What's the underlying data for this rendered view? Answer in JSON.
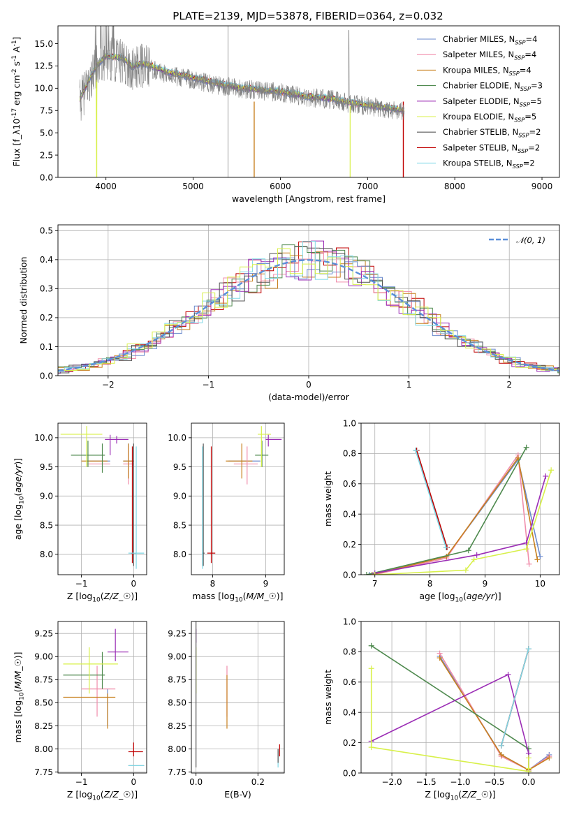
{
  "chart_data": [
    {
      "id": "spectrum",
      "type": "line",
      "title": "PLATE=2139, MJD=53878, FIBERID=0364, z=0.032",
      "xlabel": "wavelength [Angstrom, rest frame]",
      "ylabel": "Flux [f$_\\lambda$10$^{-17}$ erg cm$^{-2}$ s$^{-1}$ A$^{-1}$]",
      "xlim": [
        3450,
        9200
      ],
      "ylim": [
        0,
        17
      ],
      "xticks": [
        4000,
        5000,
        6000,
        7000,
        8000,
        9000
      ],
      "yticks": [
        0.0,
        2.5,
        5.0,
        7.5,
        10.0,
        12.5,
        15.0
      ],
      "grid": false,
      "legend_position": "top-right",
      "legend_entries": [
        {
          "label": "Chabrier MILES, N$_{SSP}$=4",
          "color": "#6a89cc"
        },
        {
          "label": "Salpeter MILES, N$_{SSP}$=4",
          "color": "#f08dab"
        },
        {
          "label": "Kroupa MILES, N$_{SSP}$=4",
          "color": "#c8801e"
        },
        {
          "label": "Chabrier ELODIE, N$_{SSP}$=3",
          "color": "#4f8a4f"
        },
        {
          "label": "Salpeter ELODIE, N$_{SSP}$=5",
          "color": "#9b2db5"
        },
        {
          "label": "Kroupa ELODIE, N$_{SSP}$=5",
          "color": "#d8f04a"
        },
        {
          "label": "Chabrier STELIB, N$_{SSP}$=2",
          "color": "#555555"
        },
        {
          "label": "Salpeter STELIB, N$_{SSP}$=2",
          "color": "#c00000"
        },
        {
          "label": "Kroupa STELIB, N$_{SSP}$=2",
          "color": "#7fd8e6"
        }
      ],
      "data_curve": {
        "name": "data",
        "color": "#808080",
        "x": [
          3700,
          3800,
          3900,
          4000,
          4100,
          4200,
          4300,
          4400,
          4500,
          4700,
          5000,
          5200,
          5500,
          5800,
          6000,
          6300,
          6600,
          6800,
          7000,
          7300,
          7420
        ],
        "y": [
          8.5,
          10.5,
          12.5,
          13.5,
          13.2,
          13.0,
          12.0,
          12.5,
          12.3,
          11.5,
          11.0,
          10.5,
          10.0,
          9.7,
          9.5,
          9.0,
          8.7,
          8.3,
          8.0,
          7.6,
          7.5
        ]
      },
      "model_curve": {
        "x": [
          3700,
          3800,
          3900,
          4000,
          4100,
          4200,
          4300,
          4400,
          4500,
          4700,
          5000,
          5200,
          5500,
          5800,
          6000,
          6300,
          6600,
          6800,
          7000,
          7300,
          7420
        ],
        "y": [
          8.8,
          10.8,
          12.6,
          13.6,
          13.5,
          13.4,
          12.4,
          12.8,
          12.6,
          11.8,
          11.2,
          10.7,
          10.1,
          9.8,
          9.6,
          9.1,
          8.8,
          8.4,
          8.1,
          7.7,
          7.5
        ]
      }
    },
    {
      "id": "residuals",
      "type": "line",
      "xlabel": "(data-model)/error",
      "ylabel": "Normed distribution",
      "xlim": [
        -2.5,
        2.5
      ],
      "ylim": [
        0,
        0.52
      ],
      "xticks": [
        -2,
        -1,
        0,
        1,
        2
      ],
      "yticks": [
        0.0,
        0.1,
        0.2,
        0.3,
        0.4,
        0.5
      ],
      "grid": true,
      "legend_position": "top-right",
      "legend_entries": [
        {
          "label": "$\\mathcal{N}(0,1)$",
          "color": "#5b8fd9",
          "style": "dashed"
        }
      ]
    },
    {
      "id": "age_vs_Z",
      "type": "scatter",
      "xlabel": "Z [log$_{10}$($Z/Z_\\odot$)]",
      "ylabel": "age  [log$_{10}$($age/yr$)]",
      "xlim": [
        -1.45,
        0.25
      ],
      "ylim": [
        7.65,
        10.25
      ],
      "xticks": [
        -1,
        0
      ],
      "yticks": [
        8.0,
        8.5,
        9.0,
        9.5,
        10.0
      ],
      "grid": true
    },
    {
      "id": "age_vs_mass",
      "type": "scatter",
      "xlabel": "mass [log$_{10}$($M/M_\\odot$)]",
      "ylabel": "",
      "xlim": [
        7.6,
        9.35
      ],
      "ylim": [
        7.65,
        10.25
      ],
      "xticks": [
        8,
        9
      ],
      "yticks": [
        8.0,
        8.5,
        9.0,
        9.5,
        10.0
      ],
      "grid": true
    },
    {
      "id": "weight_vs_age",
      "type": "line",
      "xlabel": "age  [log$_{10}$($age/yr$)]",
      "ylabel": "mass weight",
      "xlim": [
        6.75,
        10.35
      ],
      "ylim": [
        0,
        1.0
      ],
      "xticks": [
        7,
        8,
        9,
        10
      ],
      "yticks": [
        0.0,
        0.2,
        0.4,
        0.6,
        0.8,
        1.0
      ],
      "grid": true,
      "series": [
        {
          "name": "Chabrier MILES, N$_{SSP}$=4",
          "color": "#6a89cc",
          "x": [
            6.9,
            8.3,
            9.6,
            10.0
          ],
          "y": [
            0.0,
            0.12,
            0.76,
            0.12
          ]
        },
        {
          "name": "Salpeter MILES, N$_{SSP}$=4",
          "color": "#f08dab",
          "x": [
            7.0,
            8.3,
            9.6,
            9.8
          ],
          "y": [
            0.0,
            0.11,
            0.79,
            0.07
          ]
        },
        {
          "name": "Kroupa MILES, N$_{SSP}$=4",
          "color": "#c8801e",
          "x": [
            6.95,
            8.3,
            9.6,
            9.95
          ],
          "y": [
            0.0,
            0.12,
            0.77,
            0.1
          ]
        },
        {
          "name": "Chabrier ELODIE, N$_{SSP}$=3",
          "color": "#4f8a4f",
          "x": [
            6.85,
            8.7,
            9.75
          ],
          "y": [
            0.0,
            0.16,
            0.84
          ]
        },
        {
          "name": "Salpeter ELODIE, N$_{SSP}$=5",
          "color": "#9b2db5",
          "x": [
            7.0,
            8.85,
            9.75,
            10.1
          ],
          "y": [
            0.01,
            0.13,
            0.21,
            0.65
          ]
        },
        {
          "name": "Kroupa ELODIE, N$_{SSP}$=5",
          "color": "#d8f04a",
          "x": [
            7.0,
            8.65,
            8.8,
            9.75,
            10.2
          ],
          "y": [
            0.0,
            0.03,
            0.1,
            0.17,
            0.69
          ]
        },
        {
          "name": "Chabrier STELIB, N$_{SSP}$=2",
          "color": "#555555",
          "x": [
            7.75,
            8.3
          ],
          "y": [
            0.82,
            0.18
          ]
        },
        {
          "name": "Salpeter STELIB, N$_{SSP}$=2",
          "color": "#c00000",
          "x": [
            7.76,
            8.31
          ],
          "y": [
            0.82,
            0.18
          ]
        },
        {
          "name": "Kroupa STELIB, N$_{SSP}$=2",
          "color": "#7fd8e6",
          "x": [
            7.74,
            8.29
          ],
          "y": [
            0.82,
            0.18
          ]
        }
      ]
    },
    {
      "id": "mass_vs_Z",
      "type": "scatter",
      "xlabel": "Z [log$_{10}$($Z/Z_\\odot$)]",
      "ylabel": "mass [log$_{10}$($M/M_\\odot$)]",
      "xlim": [
        -1.45,
        0.25
      ],
      "ylim": [
        7.74,
        9.38
      ],
      "xticks": [
        -1,
        0
      ],
      "yticks": [
        7.75,
        8.0,
        8.25,
        8.5,
        8.75,
        9.0,
        9.25
      ],
      "grid": true
    },
    {
      "id": "mass_vs_ebv",
      "type": "scatter",
      "xlabel": "E(B-V)",
      "ylabel": "",
      "xlim": [
        -0.015,
        0.285
      ],
      "ylim": [
        7.74,
        9.38
      ],
      "xticks": [
        0.0,
        0.2
      ],
      "yticks": [
        7.75,
        8.0,
        8.25,
        8.5,
        8.75,
        9.0,
        9.25
      ],
      "grid": true
    },
    {
      "id": "weight_vs_Z",
      "type": "line",
      "xlabel": "Z [log$_{10}$($Z/Z_\\odot$)]",
      "ylabel": "mass weight",
      "xlim": [
        -2.45,
        0.45
      ],
      "ylim": [
        0,
        1.0
      ],
      "xticks": [
        -2.0,
        -1.5,
        -1.0,
        -0.5,
        0.0
      ],
      "yticks": [
        0.0,
        0.2,
        0.4,
        0.6,
        0.8,
        1.0
      ],
      "grid": true,
      "series": [
        {
          "name": "Chabrier MILES, N$_{SSP}$=4",
          "color": "#6a89cc",
          "x": [
            -1.3,
            -0.4,
            0.0,
            0.3
          ],
          "y": [
            0.77,
            0.12,
            0.02,
            0.12
          ]
        },
        {
          "name": "Salpeter MILES, N$_{SSP}$=4",
          "color": "#f08dab",
          "x": [
            -1.3,
            -0.4,
            0.0,
            0.3
          ],
          "y": [
            0.79,
            0.11,
            0.02,
            0.11
          ]
        },
        {
          "name": "Kroupa MILES, N$_{SSP}$=4",
          "color": "#c8801e",
          "x": [
            -1.3,
            -0.4,
            0.0,
            0.3
          ],
          "y": [
            0.76,
            0.12,
            0.02,
            0.1
          ]
        },
        {
          "name": "Chabrier ELODIE, N$_{SSP}$=3",
          "color": "#4f8a4f",
          "x": [
            -2.3,
            0.0,
            0.0
          ],
          "y": [
            0.84,
            0.16,
            0.01
          ]
        },
        {
          "name": "Salpeter ELODIE, N$_{SSP}$=5",
          "color": "#9b2db5",
          "x": [
            -2.3,
            -0.3,
            0.0,
            0.0
          ],
          "y": [
            0.21,
            0.65,
            0.13,
            0.01
          ]
        },
        {
          "name": "Kroupa ELODIE, N$_{SSP}$=5",
          "color": "#d8f04a",
          "x": [
            -2.3,
            -2.3,
            0.0,
            0.0,
            0.0
          ],
          "y": [
            0.69,
            0.17,
            0.01,
            0.03,
            0.1
          ]
        },
        {
          "name": "Chabrier STELIB, N$_{SSP}$=2",
          "color": "#555555",
          "x": [
            -0.4,
            0.0
          ],
          "y": [
            0.18,
            0.82
          ]
        },
        {
          "name": "Salpeter STELIB, N$_{SSP}$=2",
          "color": "#c00000",
          "x": [
            -0.4,
            0.0
          ],
          "y": [
            0.18,
            0.82
          ]
        },
        {
          "name": "Kroupa STELIB, N$_{SSP}$=2",
          "color": "#7fd8e6",
          "x": [
            -0.4,
            0.0
          ],
          "y": [
            0.18,
            0.82
          ]
        }
      ]
    }
  ]
}
